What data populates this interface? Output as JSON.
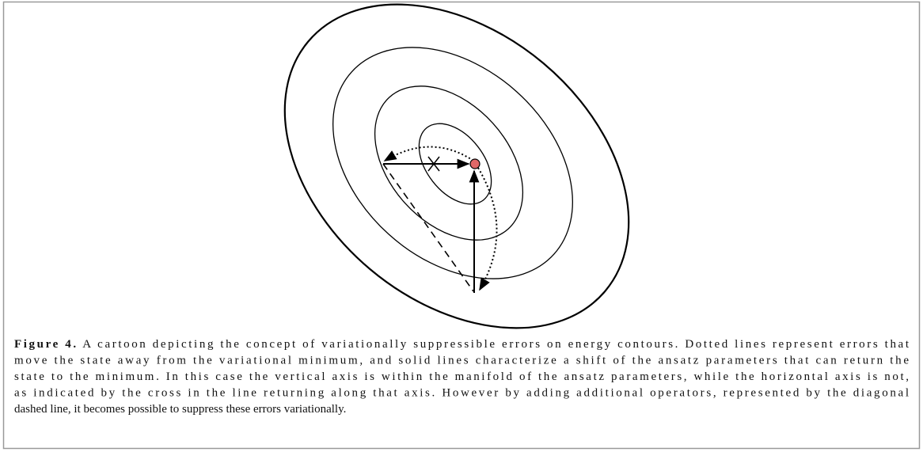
{
  "figure": {
    "label": "Figure 4.",
    "caption_lines": [
      "A cartoon depicting the concept of variationally suppressible errors on energy contours. Dotted lines represent errors that",
      "move the state away from the variational minimum, and solid lines characterize a shift of the ansatz parameters that can return the",
      "state to the minimum. In this case the vertical axis is within the manifold of the ansatz parameters, while the horizontal axis is not,",
      "as indicated by the cross in the line returning along that axis. However by adding additional operators, represented by the diagonal",
      "dashed line, it becomes possible to suppress these errors variationally."
    ]
  }
}
